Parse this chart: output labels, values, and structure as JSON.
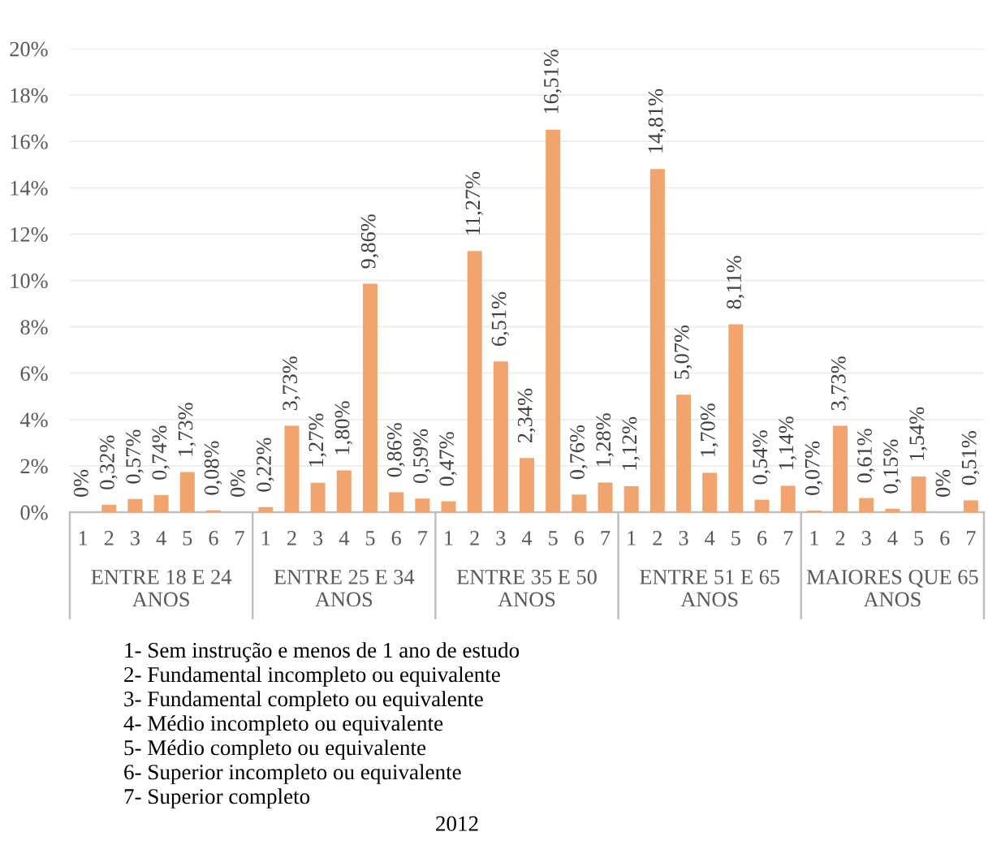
{
  "chart_data": {
    "type": "bar",
    "title": "2012",
    "categories": [
      "1",
      "2",
      "3",
      "4",
      "5",
      "6",
      "7",
      "1",
      "2",
      "3",
      "4",
      "5",
      "6",
      "7",
      "1",
      "2",
      "3",
      "4",
      "5",
      "6",
      "7",
      "1",
      "2",
      "3",
      "4",
      "5",
      "6",
      "7",
      "1",
      "2",
      "3",
      "4",
      "5",
      "6",
      "7"
    ],
    "values": [
      0,
      0.32,
      0.57,
      0.74,
      1.73,
      0.08,
      0,
      0.22,
      3.73,
      1.27,
      1.8,
      9.86,
      0.86,
      0.59,
      0.47,
      11.27,
      6.51,
      2.34,
      16.51,
      0.76,
      1.28,
      1.12,
      14.81,
      5.07,
      1.7,
      8.11,
      0.54,
      1.14,
      0.07,
      3.73,
      0.61,
      0.15,
      1.54,
      0,
      0.51
    ],
    "value_labels": [
      "0%",
      "0,32%",
      "0,57%",
      "0,74%",
      "1,73%",
      "0,08%",
      "0%",
      "0,22%",
      "3,73%",
      "1,27%",
      "1,80%",
      "9,86%",
      "0,86%",
      "0,59%",
      "0,47%",
      "11,27%",
      "6,51%",
      "2,34%",
      "16,51%",
      "0,76%",
      "1,28%",
      "1,12%",
      "14,81%",
      "5,07%",
      "1,70%",
      "8,11%",
      "0,54%",
      "1,14%",
      "0,07%",
      "3,73%",
      "0,61%",
      "0,15%",
      "1,54%",
      "0%",
      "0,51%"
    ],
    "color": "#f1a46d",
    "ylim": [
      0,
      20
    ],
    "yticks": [
      {
        "value": 0,
        "label": "0%"
      },
      {
        "value": 2,
        "label": "2%"
      },
      {
        "value": 4,
        "label": "4%"
      },
      {
        "value": 6,
        "label": "6%"
      },
      {
        "value": 8,
        "label": "8%"
      },
      {
        "value": 10,
        "label": "10%"
      },
      {
        "value": 12,
        "label": "12%"
      },
      {
        "value": 14,
        "label": "14%"
      },
      {
        "value": 16,
        "label": "16%"
      },
      {
        "value": 18,
        "label": "18%"
      },
      {
        "value": 20,
        "label": "20%"
      }
    ],
    "grid": "y",
    "annotations": [
      "ENTRE 18 E 24\nANOS",
      "ENTRE 25 E 34\nANOS",
      "ENTRE 35 E 50\nANOS",
      "ENTRE 51 E 65\nANOS",
      "MAIORES QUE 65\nANOS",
      "1- Sem instrução e menos de 1 ano de estudo\n2- Fundamental incompleto ou equivalente\n3- Fundamental completo ou equivalente\n4- Médio incompleto ou equivalente\n5- Médio completo ou equivalente\n6- Superior incompleto ou equivalente\n7- Superior completo"
    ]
  }
}
